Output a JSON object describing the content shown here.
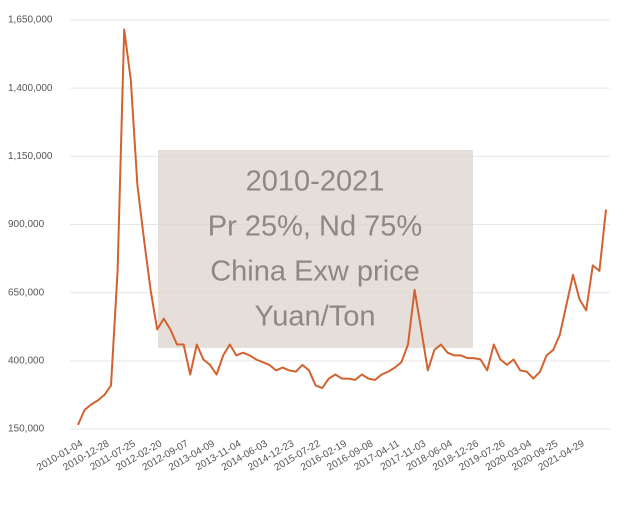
{
  "chart_data": {
    "type": "line",
    "annotation": [
      "2010-2021",
      "Pr 25%, Nd 75%",
      "China Exw price",
      "Yuan/Ton"
    ],
    "categories": [
      "2010-01-04",
      null,
      null,
      null,
      "2010-12-28",
      null,
      null,
      null,
      "2011-07-25",
      null,
      null,
      null,
      "2012-02-20",
      null,
      null,
      null,
      "2012-09-07",
      null,
      null,
      null,
      "2013-04-09",
      null,
      null,
      null,
      "2013-11-04",
      null,
      null,
      null,
      "2014-06-03",
      null,
      null,
      null,
      "2014-12-23",
      null,
      null,
      null,
      "2015-07-22",
      null,
      null,
      null,
      "2016-02-19",
      null,
      null,
      null,
      "2016-09-08",
      null,
      null,
      null,
      "2017-04-11",
      null,
      null,
      null,
      "2017-11-03",
      null,
      null,
      null,
      "2018-06-04",
      null,
      null,
      null,
      "2018-12-26",
      null,
      null,
      null,
      "2019-07-26",
      null,
      null,
      null,
      "2020-03-04",
      null,
      null,
      null,
      "2020-09-25",
      null,
      null,
      null,
      "2021-04-29",
      null,
      null,
      null,
      null
    ],
    "values": [
      165000,
      220000,
      240000,
      255000,
      275000,
      310000,
      730000,
      1615000,
      1430000,
      1045000,
      845000,
      660000,
      515000,
      555000,
      515000,
      460000,
      460000,
      350000,
      460000,
      405000,
      385000,
      350000,
      420000,
      460000,
      420000,
      430000,
      420000,
      405000,
      395000,
      385000,
      365000,
      375000,
      365000,
      360000,
      385000,
      365000,
      310000,
      300000,
      335000,
      350000,
      335000,
      335000,
      330000,
      350000,
      335000,
      330000,
      350000,
      360000,
      375000,
      395000,
      460000,
      660000,
      515000,
      365000,
      440000,
      460000,
      430000,
      420000,
      420000,
      410000,
      410000,
      405000,
      365000,
      460000,
      405000,
      385000,
      405000,
      365000,
      360000,
      335000,
      360000,
      420000,
      440000,
      495000,
      605000,
      715000,
      625000,
      585000,
      750000,
      730000,
      955000
    ],
    "color": "#d2622f",
    "ylim": [
      150000,
      1650000
    ],
    "yticks": [
      {
        "value": 150000,
        "label": "150,000"
      },
      {
        "value": 400000,
        "label": "400,000"
      },
      {
        "value": 650000,
        "label": "650,000"
      },
      {
        "value": 900000,
        "label": "900,000"
      },
      {
        "value": 1150000,
        "label": "1,150,000"
      },
      {
        "value": 1400000,
        "label": "1,400,000"
      },
      {
        "value": 1650000,
        "label": "1,650,000"
      }
    ],
    "grid": true
  }
}
